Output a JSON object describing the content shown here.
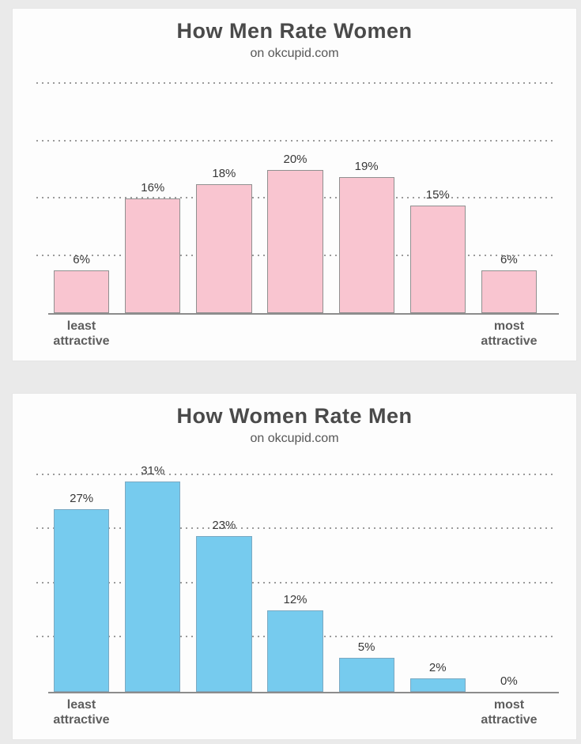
{
  "page": {
    "background": "#eaeaea",
    "panel_background": "#fdfdfd"
  },
  "chart_data": [
    {
      "type": "bar",
      "title": "How Men Rate Women",
      "subtitle": "on okcupid.com",
      "values": [
        6,
        16,
        18,
        20,
        19,
        15,
        6
      ],
      "labels": [
        "6%",
        "16%",
        "18%",
        "20%",
        "19%",
        "15%",
        "6%"
      ],
      "bar_color": "#f9c5d0",
      "bar_border": "#909090",
      "gridlines": [
        8,
        16,
        24,
        32
      ],
      "ylim": [
        0,
        34
      ],
      "grid": "dotted horizontal",
      "xlabel_left": [
        "least",
        "attractive"
      ],
      "xlabel_right": [
        "most",
        "attractive"
      ]
    },
    {
      "type": "bar",
      "title": "How Women Rate Men",
      "subtitle": "on okcupid.com",
      "values": [
        27,
        31,
        23,
        12,
        5,
        2,
        0
      ],
      "labels": [
        "27%",
        "31%",
        "23%",
        "12%",
        "5%",
        "2%",
        "0%"
      ],
      "bar_color": "#76cbee",
      "bar_border": "#7ba9c2",
      "gridlines": [
        8,
        16,
        24,
        32
      ],
      "ylim": [
        0,
        35
      ],
      "grid": "dotted horizontal",
      "xlabel_left": [
        "least",
        "attractive"
      ],
      "xlabel_right": [
        "most",
        "attractive"
      ]
    }
  ]
}
